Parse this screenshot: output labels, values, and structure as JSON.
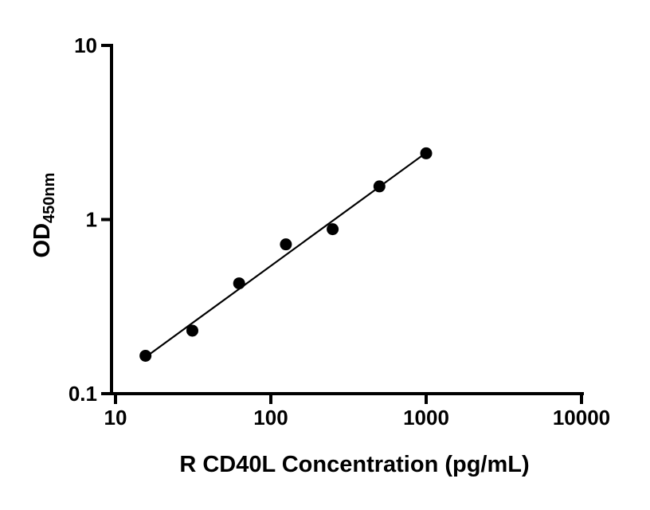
{
  "figure": {
    "background_color": "#ffffff",
    "accent_color": "#000000"
  },
  "chart_data": {
    "type": "scatter",
    "title": "",
    "xlabel": "R CD40L Concentration (pg/mL)",
    "ylabel": "OD450nm",
    "ylabel_main": "OD",
    "ylabel_sub": "450nm",
    "x_scale": "log",
    "y_scale": "log",
    "xlim": [
      10,
      10000
    ],
    "ylim": [
      0.1,
      10
    ],
    "x_ticks": [
      10,
      100,
      1000,
      10000
    ],
    "y_ticks": [
      0.1,
      1,
      10
    ],
    "x_tick_labels": [
      "10",
      "100",
      "1000",
      "10000"
    ],
    "y_tick_labels": [
      "0.1",
      "1",
      "10"
    ],
    "grid": false,
    "legend": false,
    "marker_color": "#000000",
    "line_color": "#000000",
    "x": [
      15.6,
      31.25,
      62.5,
      125,
      250,
      500,
      1000
    ],
    "y": [
      0.165,
      0.23,
      0.43,
      0.72,
      0.88,
      1.55,
      2.4
    ],
    "fit_line": {
      "x": [
        15.6,
        1000
      ],
      "y": [
        0.162,
        2.42
      ]
    }
  }
}
